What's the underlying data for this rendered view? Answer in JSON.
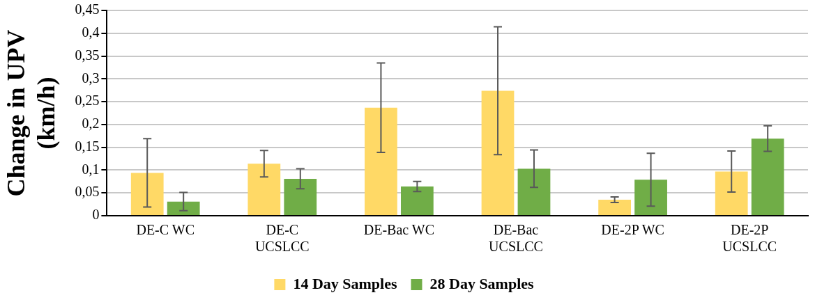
{
  "chart_data": {
    "type": "bar",
    "ylabel": "Change in UPV (km/h)",
    "categories": [
      "DE-C WC",
      "DE-C UCSLCC",
      "DE-Bac WC",
      "DE-Bac UCSLCC",
      "DE-2P WC",
      "DE-2P UCSLCC"
    ],
    "series": [
      {
        "name": "14 Day Samples",
        "color": "#ffd966",
        "values": [
          0.094,
          0.114,
          0.237,
          0.274,
          0.035,
          0.097
        ],
        "errors": [
          0.075,
          0.029,
          0.098,
          0.14,
          0.006,
          0.045
        ]
      },
      {
        "name": "28 Day Samples",
        "color": "#70ad47",
        "values": [
          0.031,
          0.081,
          0.064,
          0.103,
          0.079,
          0.169
        ],
        "errors": [
          0.02,
          0.022,
          0.011,
          0.041,
          0.058,
          0.028
        ]
      }
    ],
    "ylim": [
      0,
      0.45
    ],
    "yticks": [
      {
        "value": 0,
        "label": "0"
      },
      {
        "value": 0.05,
        "label": "0,05"
      },
      {
        "value": 0.1,
        "label": "0,1"
      },
      {
        "value": 0.15,
        "label": "0,15"
      },
      {
        "value": 0.2,
        "label": "0,2"
      },
      {
        "value": 0.25,
        "label": "0,25"
      },
      {
        "value": 0.3,
        "label": "0,3"
      },
      {
        "value": 0.35,
        "label": "0,35"
      },
      {
        "value": 0.4,
        "label": "0,4"
      },
      {
        "value": 0.45,
        "label": "0,45"
      }
    ],
    "grid": "y",
    "legend": "bottom"
  }
}
